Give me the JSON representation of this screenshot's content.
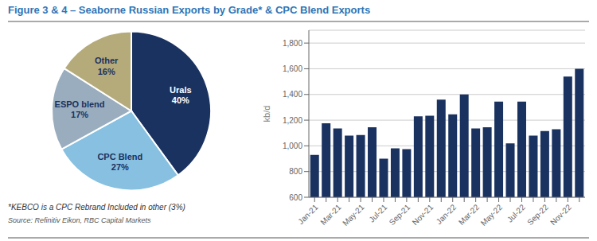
{
  "title": "Figure 3 & 4 – Seaborne Russian Exports by Grade* & CPC Blend Exports",
  "annotations": [
    "*KEBCO is a CPC Rebrand Included in other (3%)",
    "Source: Refinitiv Eikon, RBC Capital Markets"
  ],
  "chart_data": [
    {
      "type": "pie",
      "categories": [
        "Urals",
        "CPC Blend",
        "ESPO blend",
        "Other"
      ],
      "values": [
        40,
        27,
        17,
        16
      ],
      "value_labels": [
        "40%",
        "27%",
        "17%",
        "16%"
      ],
      "colors": [
        "#1a3260",
        "#87c0e0",
        "#9aadbe",
        "#b5aa7a"
      ],
      "data_labels": true
    },
    {
      "type": "bar",
      "ylabel": "kb/d",
      "categories": [
        "Jan-21",
        null,
        "Mar-21",
        null,
        "May-21",
        null,
        "Jul-21",
        null,
        "Sep-21",
        null,
        "Nov-21",
        null,
        "Jan-22",
        null,
        "Mar-22",
        null,
        "May-22",
        null,
        "Jul-22",
        null,
        "Sep-22",
        null,
        "Nov-22",
        null
      ],
      "values": [
        930,
        1175,
        1135,
        1080,
        1085,
        1145,
        900,
        980,
        975,
        1230,
        1235,
        1360,
        1245,
        1400,
        1135,
        1145,
        1345,
        1020,
        1345,
        1080,
        1115,
        1130,
        1540,
        1600
      ],
      "color": "#1a3260",
      "ylim": [
        600,
        1900
      ],
      "yticks": [
        600,
        800,
        {
          "value": 1000,
          "label": "1,000"
        },
        {
          "value": 1200,
          "label": "1,200"
        },
        {
          "value": 1400,
          "label": "1,400"
        },
        {
          "value": 1600,
          "label": "1,600"
        },
        {
          "value": 1800,
          "label": "1,800"
        }
      ],
      "grid": true
    }
  ]
}
